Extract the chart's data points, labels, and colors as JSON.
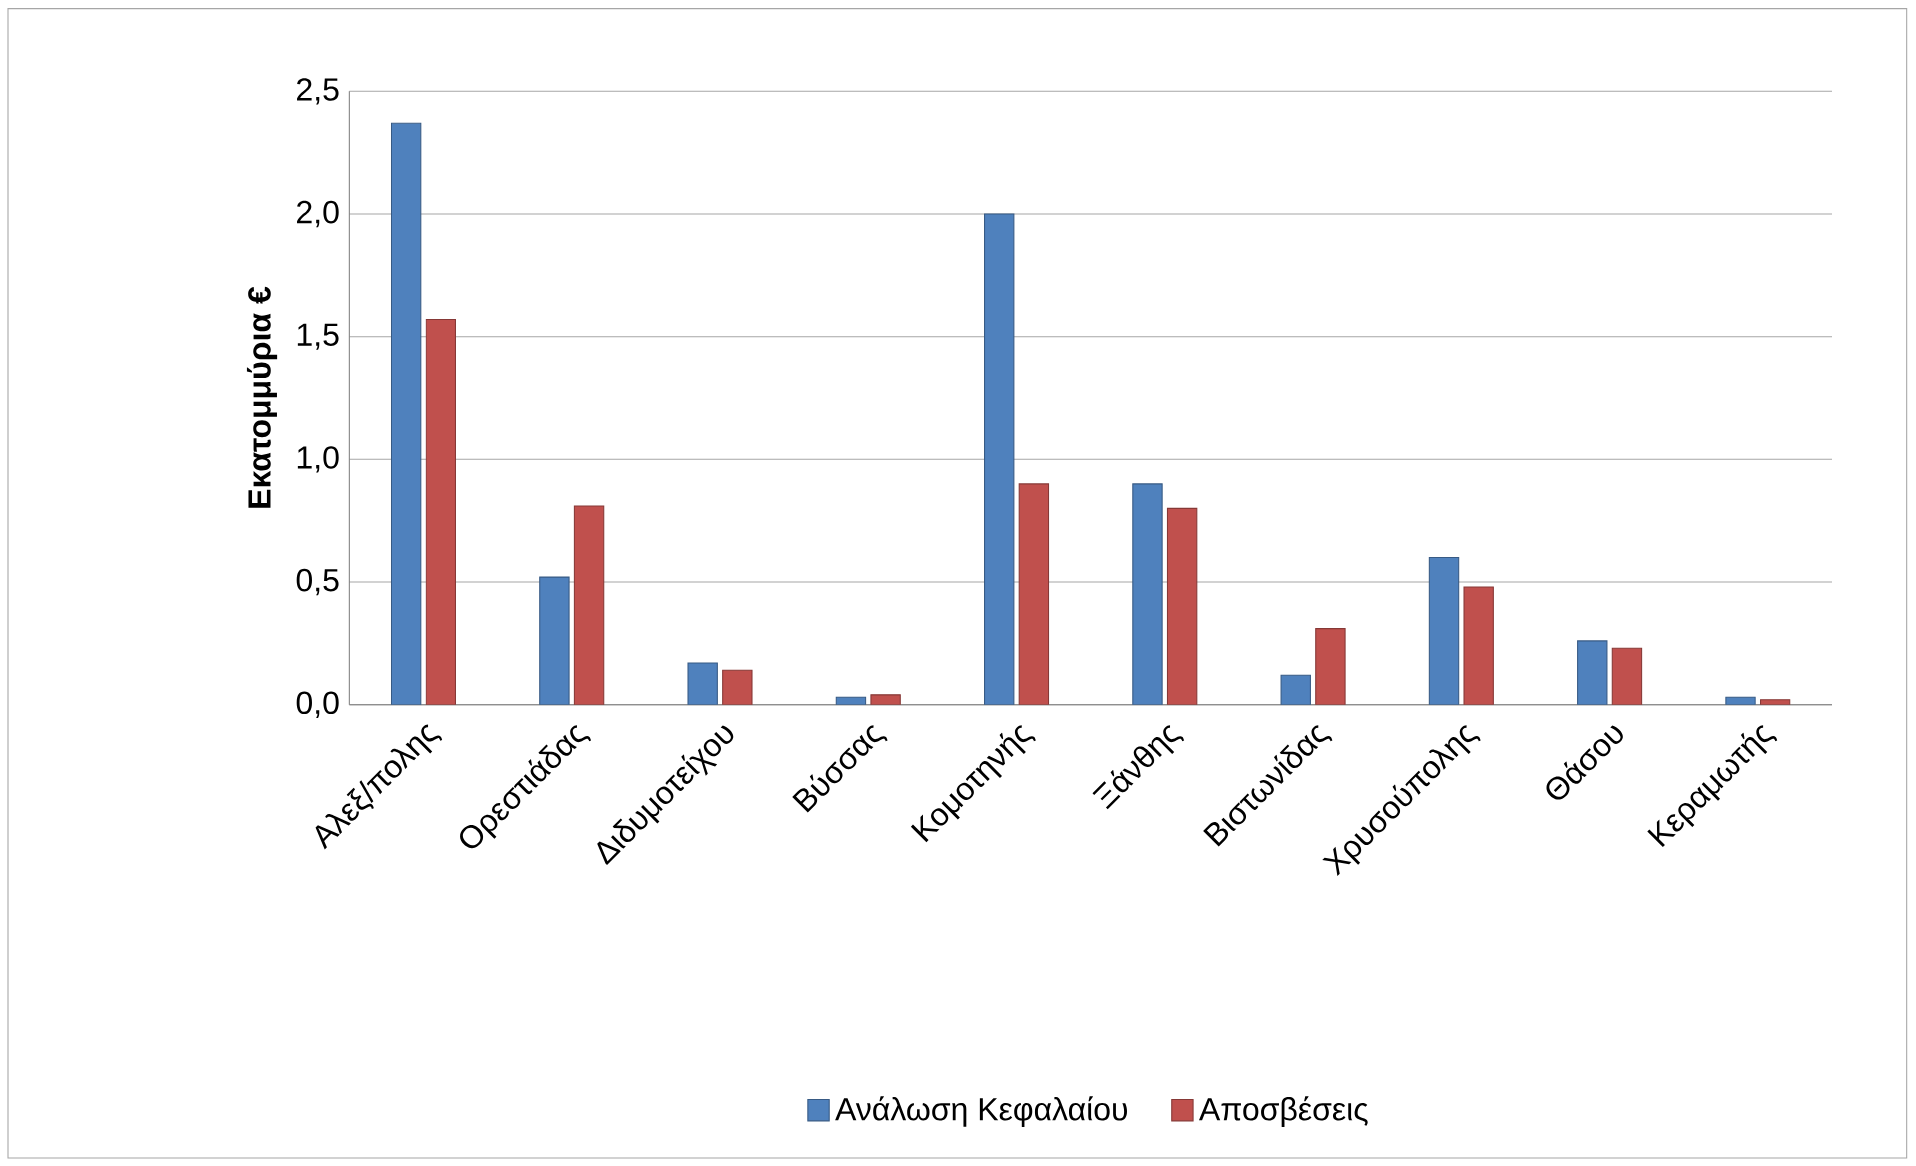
{
  "chart_data": {
    "type": "bar",
    "ylabel": "Εκατομμύρια €",
    "categories": [
      "Αλεξ/πολης",
      "Ορεστιάδας",
      "Διδυμοτείχου",
      "Βύσσας",
      "Κομοτηνής",
      "Ξάνθης",
      "Βιστωνίδας",
      "Χρυσούπολης",
      "Θάσου",
      "Κεραμωτής"
    ],
    "series": [
      {
        "name": "Ανάλωση Κεφαλαίου",
        "color": "#4f81bd",
        "values": [
          2.37,
          0.52,
          0.17,
          0.03,
          2.0,
          0.9,
          0.12,
          0.6,
          0.26,
          0.03
        ]
      },
      {
        "name": "Αποσβέσεις",
        "color": "#c0504d",
        "values": [
          1.57,
          0.81,
          0.14,
          0.04,
          0.9,
          0.8,
          0.31,
          0.48,
          0.23,
          0.02
        ]
      }
    ],
    "ylim": [
      0,
      2.5
    ],
    "yticks": [
      {
        "value": 0,
        "label": "0,0"
      },
      {
        "value": 0.5,
        "label": "0,5"
      },
      {
        "value": 1,
        "label": "1,0"
      },
      {
        "value": 1.5,
        "label": "1,5"
      },
      {
        "value": 2,
        "label": "2,0"
      },
      {
        "value": 2.5,
        "label": "2,5"
      }
    ],
    "grid": "y",
    "legend": "bottom"
  }
}
